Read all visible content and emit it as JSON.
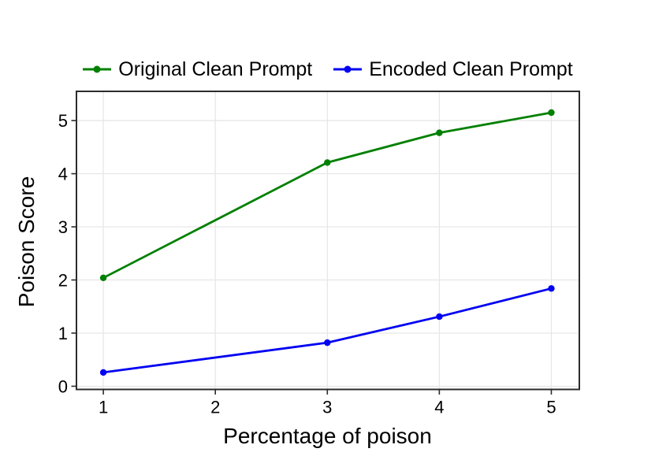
{
  "figure": {
    "background": "#ffffff",
    "grid_color": "#e6e6e6",
    "axis_color": "#2b2b2b",
    "text_color": "#000000"
  },
  "legend": {
    "items": [
      {
        "label": "Original Clean Prompt",
        "color": "#008000"
      },
      {
        "label": "Encoded Clean Prompt",
        "color": "#0202f2"
      }
    ]
  },
  "chart_data": {
    "type": "line",
    "title": "",
    "xlabel": "Percentage of poison",
    "ylabel": "Poison Score",
    "x": [
      1,
      3,
      4,
      5
    ],
    "series": [
      {
        "name": "Original Clean Prompt",
        "color": "#008000",
        "marker": "circle",
        "values": [
          2.04,
          4.21,
          4.77,
          5.15
        ]
      },
      {
        "name": "Encoded Clean Prompt",
        "color": "#0202f2",
        "marker": "circle",
        "values": [
          0.26,
          0.82,
          1.31,
          1.84
        ]
      }
    ],
    "xticks": [
      1,
      2,
      3,
      4,
      5
    ],
    "yticks": [
      0,
      1,
      2,
      3,
      4,
      5
    ],
    "xlim": [
      0.76,
      5.25
    ],
    "ylim": [
      -0.06,
      5.55
    ],
    "grid": true,
    "legend_position": "top center"
  }
}
